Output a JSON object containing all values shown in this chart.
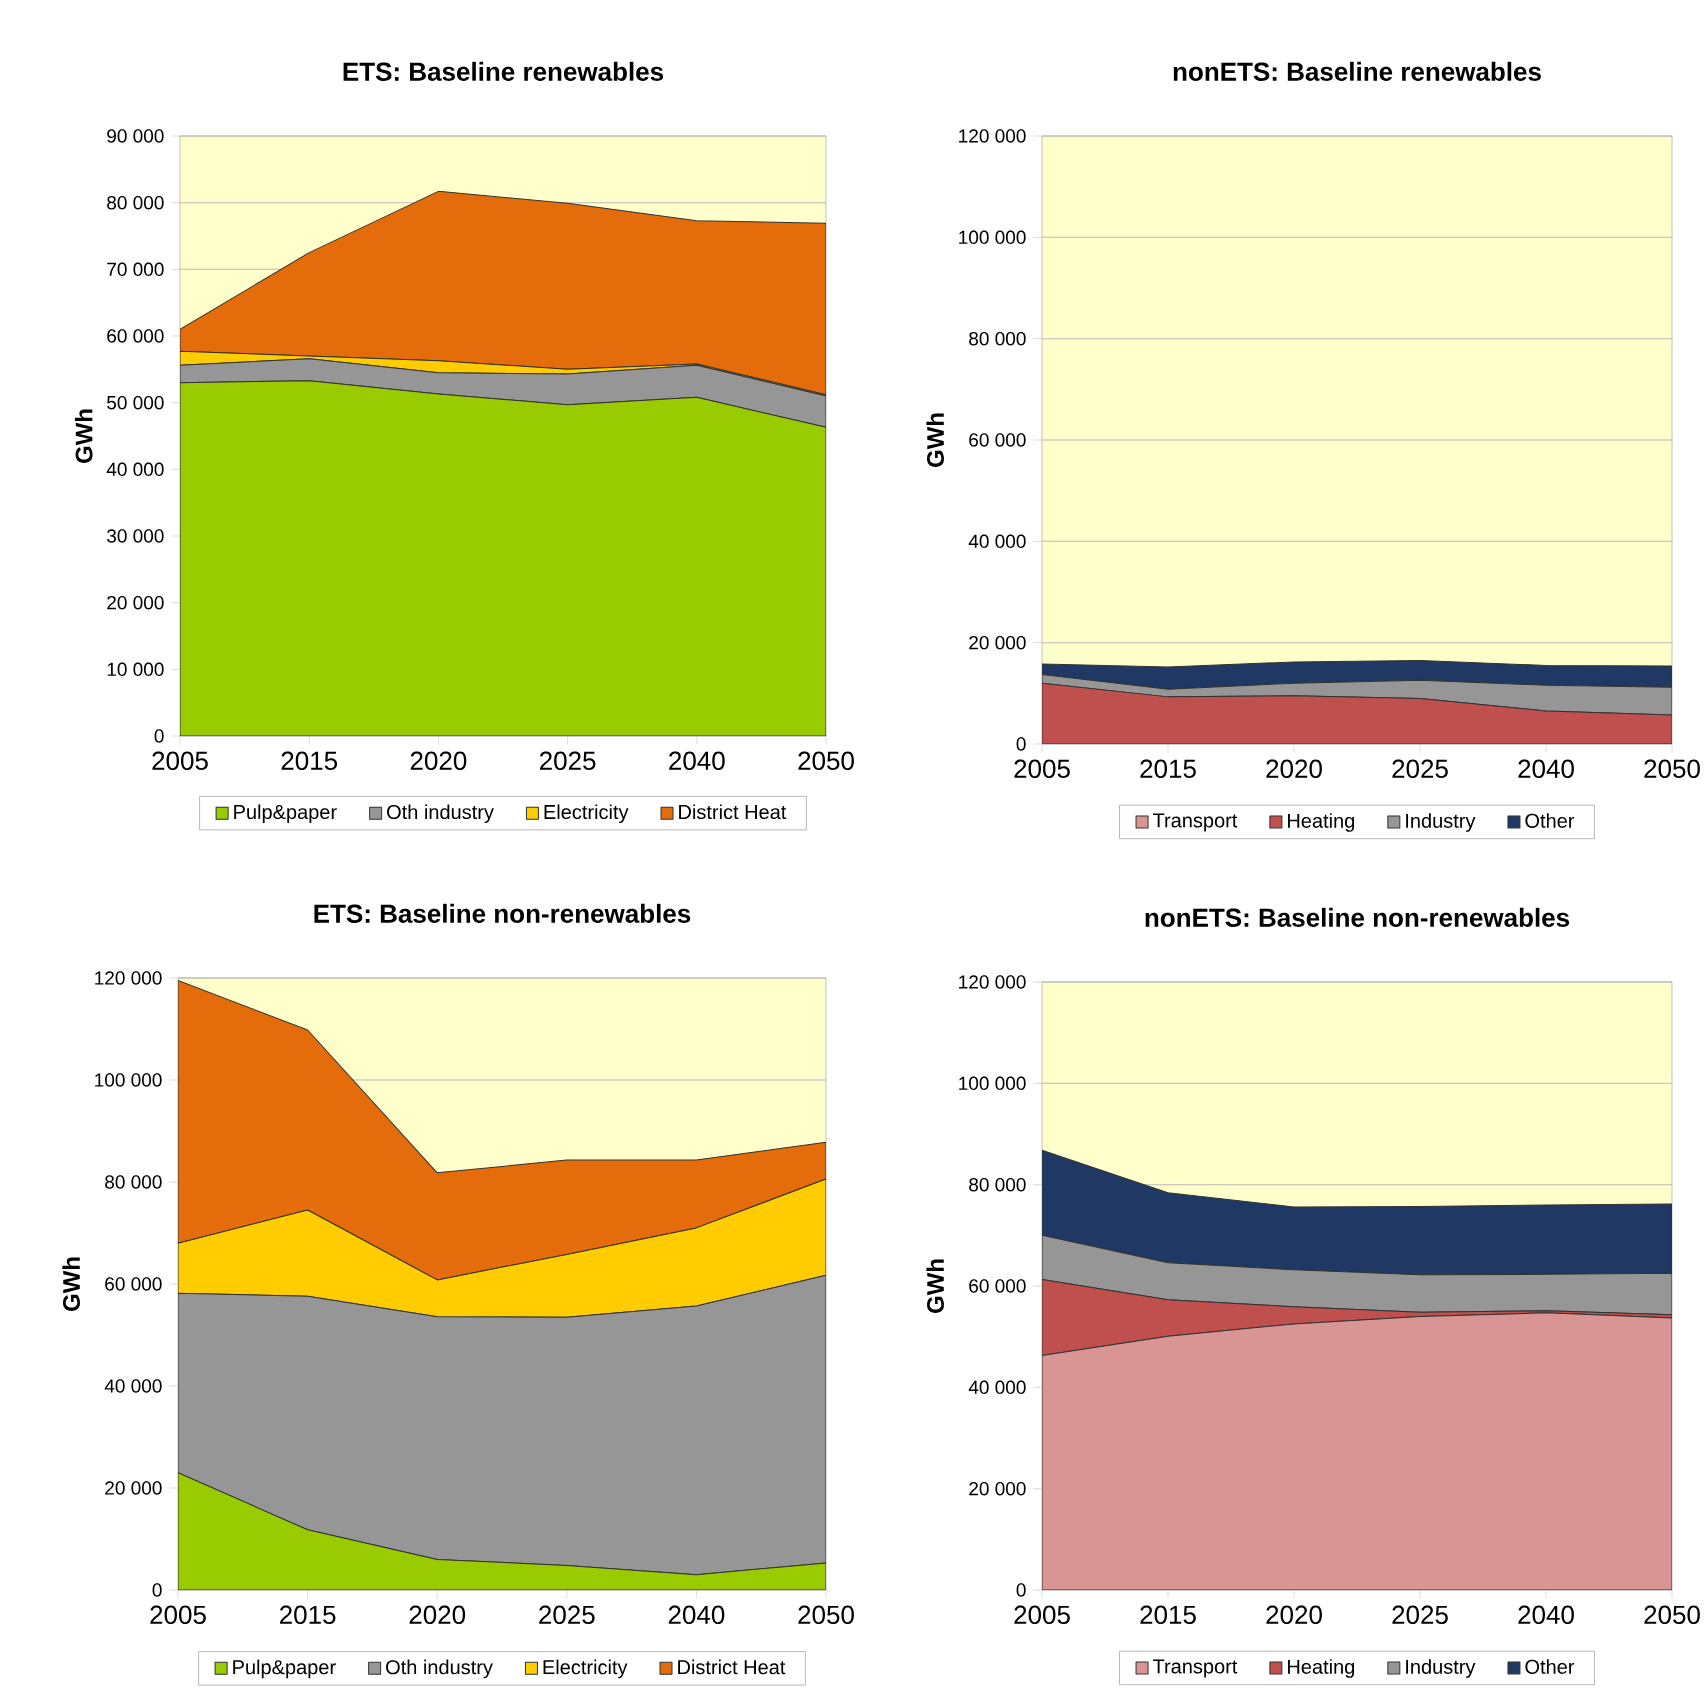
{
  "chart_data": [
    {
      "type": "area",
      "title": "ETS: Baseline renewables",
      "ylabel": "GWh",
      "categories": [
        "2005",
        "2015",
        "2020",
        "2025",
        "2040",
        "2050"
      ],
      "stacked": true,
      "grid": "y",
      "legend": "bottom",
      "bands": [
        {
          "axis": "y",
          "from": 0,
          "to": 90000,
          "color": "#ffffcc"
        }
      ],
      "ylim": [
        0,
        90000
      ],
      "yticks": [
        {
          "value": 0,
          "label": "0"
        },
        {
          "value": 10000,
          "label": "10 000"
        },
        {
          "value": 20000,
          "label": "20 000"
        },
        {
          "value": 30000,
          "label": "30 000"
        },
        {
          "value": 40000,
          "label": "40 000"
        },
        {
          "value": 50000,
          "label": "50 000"
        },
        {
          "value": 60000,
          "label": "60 000"
        },
        {
          "value": 70000,
          "label": "70 000"
        },
        {
          "value": 80000,
          "label": "80 000"
        },
        {
          "value": 90000,
          "label": "90 000"
        }
      ],
      "series": [
        {
          "name": "Pulp&paper",
          "color": "#99cc00",
          "values": [
            53000,
            53300,
            51300,
            49700,
            50800,
            46300
          ]
        },
        {
          "name": "Oth industry",
          "color": "#969696",
          "values": [
            2600,
            3300,
            3200,
            4600,
            4800,
            4700
          ]
        },
        {
          "name": "Electricity",
          "color": "#ffcc00",
          "values": [
            2100,
            400,
            1800,
            700,
            200,
            200
          ]
        },
        {
          "name": "District Heat",
          "color": "#e46c0a",
          "values": [
            3300,
            15500,
            25400,
            24900,
            21500,
            25700
          ]
        }
      ]
    },
    {
      "type": "area",
      "title": "nonETS: Baseline renewables",
      "ylabel": "GWh",
      "categories": [
        "2005",
        "2015",
        "2020",
        "2025",
        "2040",
        "2050"
      ],
      "stacked": true,
      "grid": "y",
      "legend": "bottom",
      "bands": [
        {
          "axis": "y",
          "from": 0,
          "to": 120000,
          "color": "#ffffcc"
        }
      ],
      "ylim": [
        0,
        120000
      ],
      "yticks": [
        {
          "value": 0,
          "label": "0"
        },
        {
          "value": 20000,
          "label": "20 000"
        },
        {
          "value": 40000,
          "label": "40 000"
        },
        {
          "value": 60000,
          "label": "60 000"
        },
        {
          "value": 80000,
          "label": "80 000"
        },
        {
          "value": 100000,
          "label": "100 000"
        },
        {
          "value": 120000,
          "label": "120 000"
        }
      ],
      "series": [
        {
          "name": "Transport",
          "color": "#d99594",
          "values": [
            null,
            null,
            null,
            null,
            null,
            null
          ]
        },
        {
          "name": "Heating",
          "color": "#c0504d",
          "values": [
            12000,
            9300,
            9500,
            9000,
            6500,
            5700
          ]
        },
        {
          "name": "Industry",
          "color": "#969696",
          "values": [
            1700,
            1500,
            2500,
            3600,
            5100,
            5500
          ]
        },
        {
          "name": "Other",
          "color": "#1f3864",
          "values": [
            2100,
            4400,
            4200,
            3900,
            3900,
            4200
          ]
        }
      ]
    },
    {
      "type": "area",
      "title": "ETS: Baseline non-renewables",
      "ylabel": "GWh",
      "categories": [
        "2005",
        "2015",
        "2020",
        "2025",
        "2040",
        "2050"
      ],
      "stacked": true,
      "grid": "y",
      "legend": "bottom",
      "bands": [
        {
          "axis": "y",
          "from": 0,
          "to": 120000,
          "color": "#ffffcc"
        }
      ],
      "ylim": [
        0,
        120000
      ],
      "yticks": [
        {
          "value": 0,
          "label": "0"
        },
        {
          "value": 20000,
          "label": "20 000"
        },
        {
          "value": 40000,
          "label": "40 000"
        },
        {
          "value": 60000,
          "label": "60 000"
        },
        {
          "value": 80000,
          "label": "80 000"
        },
        {
          "value": 100000,
          "label": "100 000"
        },
        {
          "value": 120000,
          "label": "120 000"
        }
      ],
      "series": [
        {
          "name": "Pulp&paper",
          "color": "#99cc00",
          "values": [
            23000,
            11800,
            6000,
            4800,
            3000,
            5300
          ]
        },
        {
          "name": "Oth industry",
          "color": "#969696",
          "values": [
            35200,
            45800,
            47600,
            48700,
            52700,
            56400
          ]
        },
        {
          "name": "Electricity",
          "color": "#ffcc00",
          "values": [
            9800,
            16900,
            7200,
            12300,
            15300,
            18900
          ]
        },
        {
          "name": "District Heat",
          "color": "#e46c0a",
          "values": [
            51500,
            35300,
            21000,
            18500,
            13300,
            7200
          ]
        }
      ]
    },
    {
      "type": "area",
      "title": "nonETS: Baseline non-renewables",
      "ylabel": "GWh",
      "categories": [
        "2005",
        "2015",
        "2020",
        "2025",
        "2040",
        "2050"
      ],
      "stacked": true,
      "grid": "y",
      "legend": "bottom",
      "bands": [
        {
          "axis": "y",
          "from": 0,
          "to": 120000,
          "color": "#ffffcc"
        }
      ],
      "ylim": [
        0,
        120000
      ],
      "yticks": [
        {
          "value": 0,
          "label": "0"
        },
        {
          "value": 20000,
          "label": "20 000"
        },
        {
          "value": 40000,
          "label": "40 000"
        },
        {
          "value": 60000,
          "label": "60 000"
        },
        {
          "value": 80000,
          "label": "80 000"
        },
        {
          "value": 100000,
          "label": "100 000"
        },
        {
          "value": 120000,
          "label": "120 000"
        }
      ],
      "series": [
        {
          "name": "Transport",
          "color": "#d99594",
          "values": [
            46300,
            50100,
            52500,
            54000,
            54700,
            53700
          ]
        },
        {
          "name": "Heating",
          "color": "#c0504d",
          "values": [
            15000,
            7200,
            3400,
            800,
            400,
            600
          ]
        },
        {
          "name": "Industry",
          "color": "#969696",
          "values": [
            8700,
            7300,
            7300,
            7400,
            7200,
            8200
          ]
        },
        {
          "name": "Other",
          "color": "#1f3864",
          "values": [
            16800,
            13800,
            12400,
            13500,
            13700,
            13700
          ]
        }
      ]
    }
  ]
}
